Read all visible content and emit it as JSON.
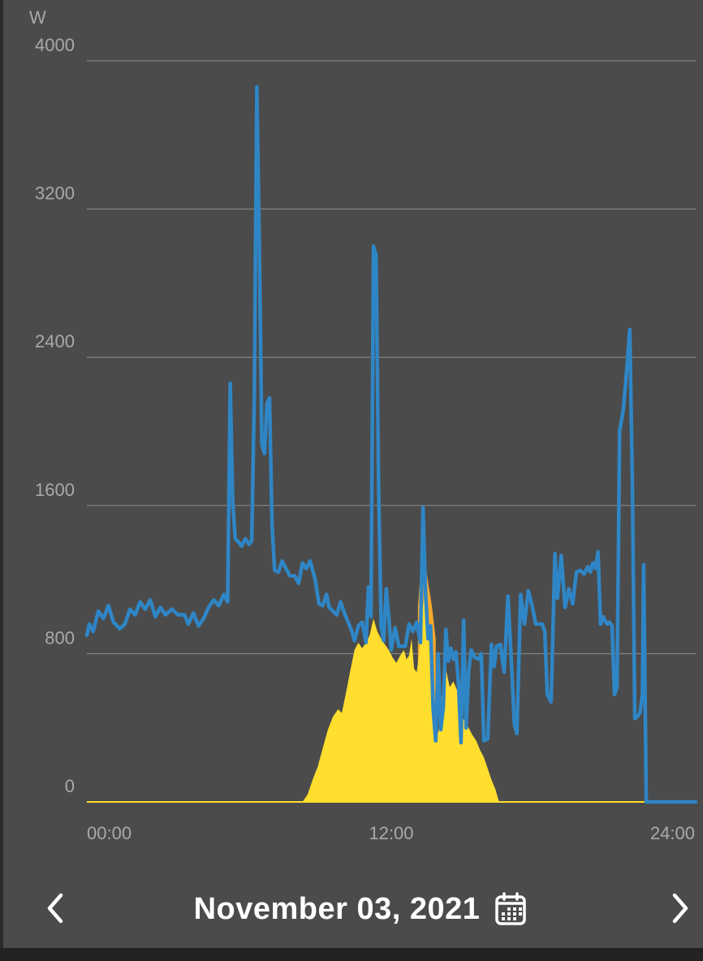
{
  "colors": {
    "background": "#4b4b4b",
    "grid": "#8e8e8e",
    "tick_text": "#a9a9a9",
    "consumption": "#2f86c6",
    "solar": "#ffde2e",
    "solar_overlap": "#f6a92a",
    "text": "#ffffff"
  },
  "chart_data": {
    "type": "area",
    "ylabel": "W",
    "yticks": [
      "0",
      "800",
      "1600",
      "2400",
      "3200",
      "4000"
    ],
    "ylim": [
      0,
      4000
    ],
    "xticks": [
      "00:00",
      "12:00",
      "24:00"
    ],
    "xlim": [
      0,
      24
    ],
    "grid": true,
    "series": [
      {
        "kind": "line",
        "color": "#2f86c6",
        "points": [
          [
            0,
            900
          ],
          [
            0.1,
            960
          ],
          [
            0.25,
            920
          ],
          [
            0.45,
            1030
          ],
          [
            0.65,
            990
          ],
          [
            0.85,
            1060
          ],
          [
            1.05,
            970
          ],
          [
            1.3,
            935
          ],
          [
            1.5,
            960
          ],
          [
            1.7,
            1040
          ],
          [
            1.9,
            1010
          ],
          [
            2.1,
            1080
          ],
          [
            2.3,
            1040
          ],
          [
            2.5,
            1090
          ],
          [
            2.7,
            1000
          ],
          [
            2.9,
            1050
          ],
          [
            3.1,
            1010
          ],
          [
            3.35,
            1040
          ],
          [
            3.6,
            1010
          ],
          [
            3.85,
            1010
          ],
          [
            4.0,
            960
          ],
          [
            4.2,
            1020
          ],
          [
            4.4,
            950
          ],
          [
            4.6,
            990
          ],
          [
            4.8,
            1050
          ],
          [
            5.0,
            1090
          ],
          [
            5.2,
            1060
          ],
          [
            5.4,
            1120
          ],
          [
            5.55,
            1080
          ],
          [
            5.65,
            2260
          ],
          [
            5.75,
            1620
          ],
          [
            5.85,
            1420
          ],
          [
            6.0,
            1400
          ],
          [
            6.1,
            1380
          ],
          [
            6.25,
            1420
          ],
          [
            6.4,
            1390
          ],
          [
            6.5,
            1410
          ],
          [
            6.6,
            2200
          ],
          [
            6.7,
            3860
          ],
          [
            6.8,
            3000
          ],
          [
            6.9,
            1930
          ],
          [
            7.0,
            1880
          ],
          [
            7.1,
            2150
          ],
          [
            7.2,
            2180
          ],
          [
            7.3,
            1500
          ],
          [
            7.4,
            1250
          ],
          [
            7.55,
            1240
          ],
          [
            7.7,
            1300
          ],
          [
            7.85,
            1260
          ],
          [
            8.0,
            1220
          ],
          [
            8.2,
            1220
          ],
          [
            8.35,
            1180
          ],
          [
            8.5,
            1290
          ],
          [
            8.65,
            1260
          ],
          [
            8.8,
            1300
          ],
          [
            9.0,
            1200
          ],
          [
            9.15,
            1070
          ],
          [
            9.3,
            1060
          ],
          [
            9.45,
            1120
          ],
          [
            9.55,
            1050
          ],
          [
            9.7,
            1030
          ],
          [
            9.85,
            1010
          ],
          [
            10.0,
            1080
          ],
          [
            10.15,
            1020
          ],
          [
            10.3,
            970
          ],
          [
            10.45,
            920
          ],
          [
            10.55,
            870
          ],
          [
            10.7,
            950
          ],
          [
            10.85,
            970
          ],
          [
            11.0,
            860
          ],
          [
            11.1,
            1160
          ],
          [
            11.2,
            1000
          ],
          [
            11.3,
            3000
          ],
          [
            11.4,
            2950
          ],
          [
            11.5,
            1700
          ],
          [
            11.6,
            950
          ],
          [
            11.7,
            870
          ],
          [
            11.8,
            1150
          ],
          [
            11.9,
            1000
          ],
          [
            12.0,
            820
          ],
          [
            12.15,
            940
          ],
          [
            12.3,
            840
          ],
          [
            12.45,
            840
          ],
          [
            12.55,
            840
          ],
          [
            12.7,
            960
          ],
          [
            12.85,
            920
          ],
          [
            13.0,
            970
          ],
          [
            13.15,
            860
          ],
          [
            13.25,
            1590
          ],
          [
            13.35,
            1130
          ],
          [
            13.45,
            880
          ],
          [
            13.55,
            950
          ],
          [
            13.65,
            500
          ],
          [
            13.75,
            330
          ],
          [
            13.85,
            800
          ],
          [
            13.95,
            390
          ],
          [
            14.05,
            510
          ],
          [
            14.15,
            930
          ],
          [
            14.25,
            760
          ],
          [
            14.35,
            830
          ],
          [
            14.45,
            770
          ],
          [
            14.55,
            810
          ],
          [
            14.65,
            640
          ],
          [
            14.75,
            320
          ],
          [
            14.85,
            980
          ],
          [
            14.95,
            400
          ],
          [
            15.05,
            700
          ],
          [
            15.15,
            820
          ],
          [
            15.3,
            780
          ],
          [
            15.45,
            770
          ],
          [
            15.55,
            800
          ],
          [
            15.65,
            330
          ],
          [
            15.8,
            340
          ],
          [
            15.95,
            850
          ],
          [
            16.05,
            730
          ],
          [
            16.15,
            840
          ],
          [
            16.3,
            850
          ],
          [
            16.45,
            700
          ],
          [
            16.6,
            1110
          ],
          [
            16.75,
            720
          ],
          [
            16.85,
            420
          ],
          [
            16.95,
            370
          ],
          [
            17.1,
            1120
          ],
          [
            17.25,
            960
          ],
          [
            17.4,
            1140
          ],
          [
            17.55,
            1060
          ],
          [
            17.7,
            960
          ],
          [
            17.85,
            960
          ],
          [
            17.95,
            960
          ],
          [
            18.05,
            920
          ],
          [
            18.15,
            580
          ],
          [
            18.3,
            540
          ],
          [
            18.45,
            1340
          ],
          [
            18.55,
            1100
          ],
          [
            18.7,
            1330
          ],
          [
            18.85,
            1050
          ],
          [
            19.0,
            1150
          ],
          [
            19.15,
            1070
          ],
          [
            19.3,
            1240
          ],
          [
            19.45,
            1250
          ],
          [
            19.6,
            1230
          ],
          [
            19.75,
            1270
          ],
          [
            19.85,
            1240
          ],
          [
            19.95,
            1290
          ],
          [
            20.05,
            1260
          ],
          [
            20.15,
            1350
          ],
          [
            20.25,
            960
          ],
          [
            20.35,
            1000
          ],
          [
            20.5,
            960
          ],
          [
            20.6,
            970
          ],
          [
            20.7,
            950
          ],
          [
            20.8,
            580
          ],
          [
            20.9,
            620
          ],
          [
            21.0,
            2000
          ],
          [
            21.15,
            2120
          ],
          [
            21.3,
            2360
          ],
          [
            21.4,
            2550
          ],
          [
            21.5,
            1750
          ],
          [
            21.6,
            450
          ],
          [
            21.7,
            460
          ],
          [
            21.8,
            480
          ],
          [
            21.9,
            580
          ],
          [
            21.95,
            1280
          ],
          [
            22.05,
            0
          ],
          [
            24,
            0
          ]
        ]
      },
      {
        "kind": "fill",
        "color": "#f6a92a",
        "points": [
          [
            13.05,
            0
          ],
          [
            13.05,
            1050
          ],
          [
            13.2,
            1330
          ],
          [
            13.4,
            1230
          ],
          [
            13.6,
            1060
          ],
          [
            13.75,
            880
          ],
          [
            13.75,
            0
          ]
        ]
      },
      {
        "kind": "fill",
        "color": "#ffde2e",
        "points": [
          [
            0,
            0
          ],
          [
            8.5,
            0
          ],
          [
            8.7,
            40
          ],
          [
            8.9,
            120
          ],
          [
            9.1,
            190
          ],
          [
            9.3,
            290
          ],
          [
            9.5,
            390
          ],
          [
            9.7,
            460
          ],
          [
            9.9,
            500
          ],
          [
            10.05,
            480
          ],
          [
            10.2,
            580
          ],
          [
            10.4,
            720
          ],
          [
            10.55,
            820
          ],
          [
            10.7,
            860
          ],
          [
            10.85,
            830
          ],
          [
            11.0,
            860
          ],
          [
            11.15,
            900
          ],
          [
            11.3,
            990
          ],
          [
            11.45,
            920
          ],
          [
            11.6,
            880
          ],
          [
            11.75,
            850
          ],
          [
            11.9,
            820
          ],
          [
            12.05,
            780
          ],
          [
            12.2,
            750
          ],
          [
            12.35,
            790
          ],
          [
            12.5,
            820
          ],
          [
            12.6,
            770
          ],
          [
            12.7,
            790
          ],
          [
            12.8,
            880
          ],
          [
            12.9,
            720
          ],
          [
            13.0,
            700
          ],
          [
            13.1,
            800
          ],
          [
            13.2,
            1000
          ],
          [
            13.3,
            1100
          ],
          [
            13.45,
            920
          ],
          [
            13.55,
            720
          ],
          [
            13.7,
            410
          ],
          [
            13.85,
            370
          ],
          [
            14.0,
            580
          ],
          [
            14.15,
            720
          ],
          [
            14.3,
            620
          ],
          [
            14.45,
            650
          ],
          [
            14.6,
            600
          ],
          [
            14.75,
            460
          ],
          [
            14.9,
            440
          ],
          [
            15.05,
            400
          ],
          [
            15.2,
            360
          ],
          [
            15.35,
            330
          ],
          [
            15.5,
            280
          ],
          [
            15.65,
            240
          ],
          [
            15.8,
            180
          ],
          [
            15.95,
            120
          ],
          [
            16.1,
            70
          ],
          [
            16.25,
            0
          ],
          [
            24,
            0
          ]
        ]
      },
      {
        "kind": "baseline",
        "color": "#ffde2e",
        "points": [
          [
            0,
            0
          ],
          [
            22.05,
            0
          ]
        ]
      }
    ]
  },
  "footer": {
    "date": "November 03, 2021",
    "prev_icon": "chevron-left-icon",
    "next_icon": "chevron-right-icon",
    "calendar_icon": "calendar-icon"
  }
}
